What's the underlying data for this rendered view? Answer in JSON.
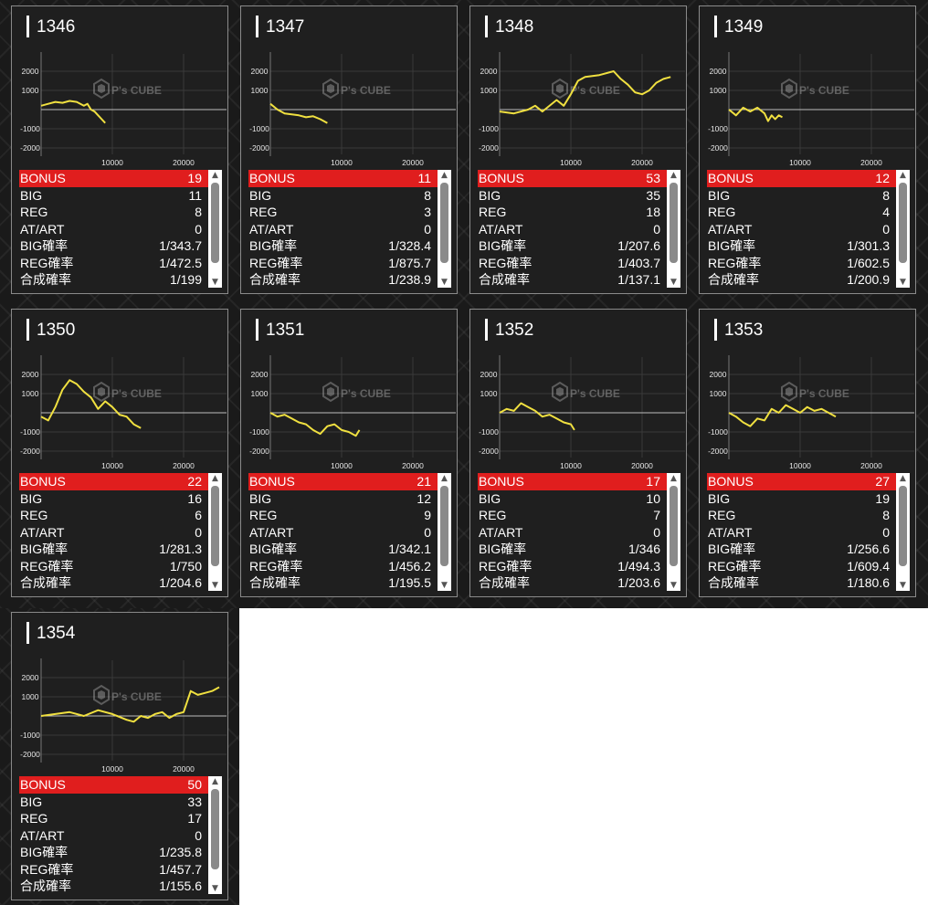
{
  "colors": {
    "line": "#f0e040",
    "bonus_bg": "#e01e1e",
    "panel_bg": "#1f1f1f"
  },
  "watermark": {
    "brand": "P's CUBE",
    "icon": "cube-logo-icon"
  },
  "axis": {
    "y_ticks": [
      "2000",
      "1000",
      "-1000",
      "-2000"
    ],
    "x_ticks": [
      "10000",
      "20000"
    ]
  },
  "labels": {
    "bonus": "BONUS",
    "big": "BIG",
    "reg": "REG",
    "atart": "AT/ART",
    "big_rate": "BIG確率",
    "reg_rate": "REG確率",
    "total_rate": "合成確率"
  },
  "scroll": {
    "up": "▲",
    "down": "▼"
  },
  "machines": [
    {
      "number": "1346",
      "bonus": "19",
      "big": "11",
      "reg": "8",
      "atart": "0",
      "big_rate": "1/343.7",
      "reg_rate": "1/472.5",
      "total_rate": "1/199",
      "chart_data": {
        "type": "line",
        "x": [
          0,
          1000,
          2000,
          3000,
          4000,
          5000,
          6000,
          6500,
          7000,
          7500,
          8000,
          8500,
          9000
        ],
        "y": [
          200,
          300,
          400,
          350,
          450,
          400,
          200,
          300,
          0,
          -100,
          -300,
          -500,
          -700
        ]
      }
    },
    {
      "number": "1347",
      "bonus": "11",
      "big": "8",
      "reg": "3",
      "atart": "0",
      "big_rate": "1/328.4",
      "reg_rate": "1/875.7",
      "total_rate": "1/238.9",
      "chart_data": {
        "type": "line",
        "x": [
          0,
          1000,
          2000,
          3000,
          4000,
          5000,
          6000,
          7000,
          8000
        ],
        "y": [
          300,
          0,
          -200,
          -250,
          -300,
          -400,
          -350,
          -500,
          -700
        ]
      }
    },
    {
      "number": "1348",
      "bonus": "53",
      "big": "35",
      "reg": "18",
      "atart": "0",
      "big_rate": "1/207.6",
      "reg_rate": "1/403.7",
      "total_rate": "1/137.1",
      "chart_data": {
        "type": "line",
        "x": [
          0,
          2000,
          4000,
          5000,
          6000,
          8000,
          9000,
          10000,
          11000,
          12000,
          14000,
          16000,
          17000,
          18000,
          19000,
          20000,
          21000,
          22000,
          23000,
          24000
        ],
        "y": [
          -100,
          -200,
          0,
          200,
          -100,
          500,
          200,
          800,
          1500,
          1700,
          1800,
          2000,
          1600,
          1300,
          900,
          800,
          1000,
          1400,
          1600,
          1700
        ]
      }
    },
    {
      "number": "1349",
      "bonus": "12",
      "big": "8",
      "reg": "4",
      "atart": "0",
      "big_rate": "1/301.3",
      "reg_rate": "1/602.5",
      "total_rate": "1/200.9",
      "chart_data": {
        "type": "line",
        "x": [
          0,
          1000,
          2000,
          3000,
          4000,
          5000,
          5500,
          6000,
          6500,
          7000,
          7500
        ],
        "y": [
          0,
          -300,
          100,
          -100,
          100,
          -200,
          -600,
          -300,
          -500,
          -300,
          -400
        ]
      }
    },
    {
      "number": "1350",
      "bonus": "22",
      "big": "16",
      "reg": "6",
      "atart": "0",
      "big_rate": "1/281.3",
      "reg_rate": "1/750",
      "total_rate": "1/204.6",
      "chart_data": {
        "type": "line",
        "x": [
          0,
          1000,
          2000,
          3000,
          4000,
          5000,
          6000,
          7000,
          8000,
          9000,
          10000,
          11000,
          12000,
          13000,
          14000
        ],
        "y": [
          -200,
          -400,
          300,
          1200,
          1700,
          1500,
          1100,
          800,
          200,
          600,
          300,
          -100,
          -200,
          -600,
          -800
        ]
      }
    },
    {
      "number": "1351",
      "bonus": "21",
      "big": "12",
      "reg": "9",
      "atart": "0",
      "big_rate": "1/342.1",
      "reg_rate": "1/456.2",
      "total_rate": "1/195.5",
      "chart_data": {
        "type": "line",
        "x": [
          0,
          1000,
          2000,
          3000,
          4000,
          5000,
          6000,
          7000,
          8000,
          9000,
          10000,
          11000,
          12000,
          12500
        ],
        "y": [
          0,
          -200,
          -100,
          -300,
          -500,
          -600,
          -900,
          -1100,
          -700,
          -600,
          -900,
          -1000,
          -1200,
          -900
        ]
      }
    },
    {
      "number": "1352",
      "bonus": "17",
      "big": "10",
      "reg": "7",
      "atart": "0",
      "big_rate": "1/346",
      "reg_rate": "1/494.3",
      "total_rate": "1/203.6",
      "chart_data": {
        "type": "line",
        "x": [
          0,
          1000,
          2000,
          3000,
          4000,
          5000,
          6000,
          7000,
          8000,
          9000,
          10000,
          10500
        ],
        "y": [
          0,
          200,
          100,
          500,
          300,
          100,
          -200,
          -100,
          -300,
          -500,
          -600,
          -900
        ]
      }
    },
    {
      "number": "1353",
      "bonus": "27",
      "big": "19",
      "reg": "8",
      "atart": "0",
      "big_rate": "1/256.6",
      "reg_rate": "1/609.4",
      "total_rate": "1/180.6",
      "chart_data": {
        "type": "line",
        "x": [
          0,
          1000,
          2000,
          3000,
          4000,
          5000,
          6000,
          7000,
          8000,
          9000,
          10000,
          11000,
          12000,
          13000,
          14000,
          15000
        ],
        "y": [
          0,
          -200,
          -500,
          -700,
          -300,
          -400,
          200,
          0,
          400,
          200,
          0,
          300,
          100,
          200,
          0,
          -200
        ]
      }
    },
    {
      "number": "1354",
      "bonus": "50",
      "big": "33",
      "reg": "17",
      "atart": "0",
      "big_rate": "1/235.8",
      "reg_rate": "1/457.7",
      "total_rate": "1/155.6",
      "chart_data": {
        "type": "line",
        "x": [
          0,
          2000,
          4000,
          6000,
          8000,
          10000,
          12000,
          13000,
          14000,
          15000,
          16000,
          17000,
          18000,
          19000,
          20000,
          21000,
          22000,
          23000,
          24000,
          25000
        ],
        "y": [
          0,
          100,
          200,
          0,
          300,
          100,
          -200,
          -300,
          0,
          -100,
          100,
          200,
          -100,
          100,
          200,
          1300,
          1100,
          1200,
          1300,
          1500
        ]
      }
    }
  ]
}
